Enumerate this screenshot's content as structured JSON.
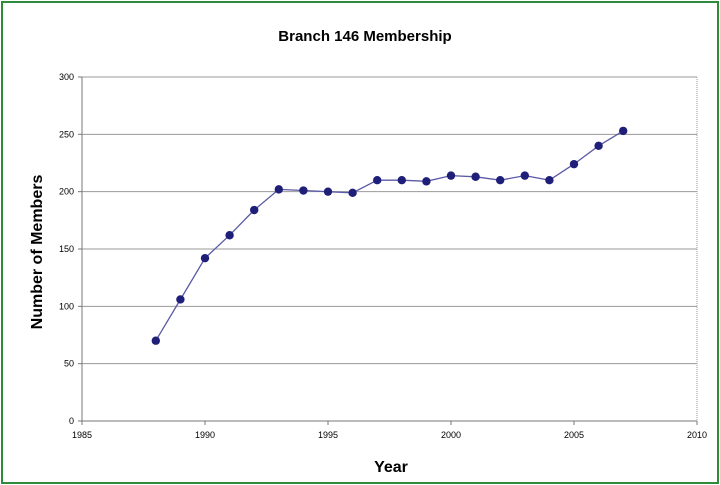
{
  "chart_data": {
    "type": "line",
    "title": "Branch 146 Membership",
    "xlabel": "Year",
    "ylabel": "Number of Members",
    "xlim": [
      1985,
      2010
    ],
    "ylim": [
      0,
      300
    ],
    "x_ticks": [
      1985,
      1990,
      1995,
      2000,
      2005,
      2010
    ],
    "y_ticks": [
      0,
      50,
      100,
      150,
      200,
      250,
      300
    ],
    "grid": "horizontal",
    "legend": "none",
    "series": [
      {
        "x": [
          1988,
          1989,
          1990,
          1991,
          1992,
          1993,
          1994,
          1995,
          1996,
          1997,
          1998,
          1999,
          2000,
          2001,
          2002,
          2003,
          2004,
          2005,
          2006,
          2007
        ],
        "y": [
          70,
          106,
          142,
          162,
          184,
          202,
          201,
          200,
          199,
          210,
          210,
          209,
          214,
          213,
          210,
          214,
          210,
          224,
          240,
          253
        ]
      }
    ]
  },
  "colors": {
    "frame": "#2e8b3a",
    "line": "#5a5aa6",
    "marker": "#1f1f7a",
    "grid": "#9a9a9a"
  }
}
